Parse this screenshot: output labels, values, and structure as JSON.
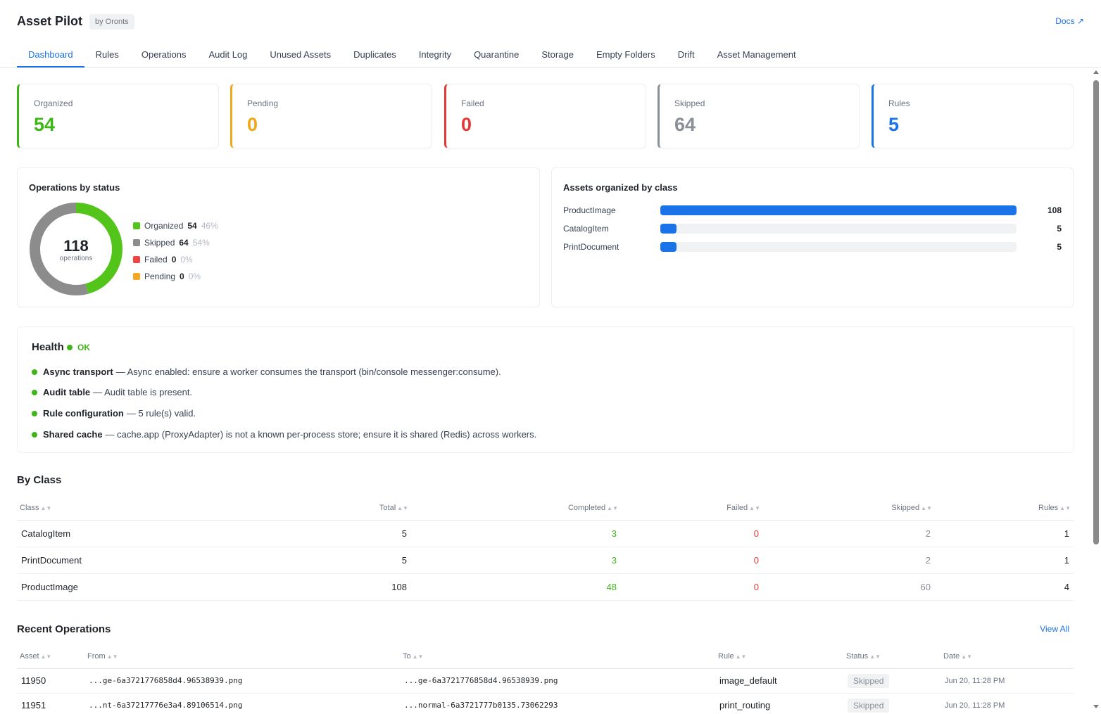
{
  "app": {
    "title": "Asset Pilot",
    "badge": "by Oronts",
    "docs_label": "Docs ↗"
  },
  "tabs": [
    "Dashboard",
    "Rules",
    "Operations",
    "Audit Log",
    "Unused Assets",
    "Duplicates",
    "Integrity",
    "Quarantine",
    "Storage",
    "Empty Folders",
    "Drift",
    "Asset Management"
  ],
  "active_tab": "Dashboard",
  "stats": [
    {
      "label": "Organized",
      "value": "54",
      "color": "#3fb618"
    },
    {
      "label": "Pending",
      "value": "0",
      "color": "#f0a818"
    },
    {
      "label": "Failed",
      "value": "0",
      "color": "#e53935"
    },
    {
      "label": "Skipped",
      "value": "64",
      "color": "#8a8f98"
    },
    {
      "label": "Rules",
      "value": "5",
      "color": "#1a73e8"
    }
  ],
  "ops_panel": {
    "title": "Operations by status",
    "total": "118",
    "total_label": "operations",
    "legend": [
      {
        "label": "Organized",
        "count": "54",
        "pct": "46%",
        "color": "#52c41a"
      },
      {
        "label": "Skipped",
        "count": "64",
        "pct": "54%",
        "color": "#8c8c8c"
      },
      {
        "label": "Failed",
        "count": "0",
        "pct": "0%",
        "color": "#ef4444"
      },
      {
        "label": "Pending",
        "count": "0",
        "pct": "0%",
        "color": "#f5a623"
      }
    ]
  },
  "class_panel": {
    "title": "Assets organized by class",
    "items": [
      {
        "name": "ProductImage",
        "value": "108",
        "fraction": 1.0
      },
      {
        "name": "CatalogItem",
        "value": "5",
        "fraction": 0.046
      },
      {
        "name": "PrintDocument",
        "value": "5",
        "fraction": 0.046
      }
    ]
  },
  "chart_data": [
    {
      "type": "pie",
      "title": "Operations by status",
      "categories": [
        "Organized",
        "Skipped",
        "Failed",
        "Pending"
      ],
      "values": [
        54,
        64,
        0,
        0
      ]
    },
    {
      "type": "bar",
      "title": "Assets organized by class",
      "categories": [
        "ProductImage",
        "CatalogItem",
        "PrintDocument"
      ],
      "values": [
        108,
        5,
        5
      ]
    }
  ],
  "health": {
    "title": "Health",
    "status": "OK",
    "checks": [
      {
        "name": "Async transport",
        "text": "— Async enabled: ensure a worker consumes the transport (bin/console messenger:consume)."
      },
      {
        "name": "Audit table",
        "text": "— Audit table is present."
      },
      {
        "name": "Rule configuration",
        "text": "— 5 rule(s) valid."
      },
      {
        "name": "Shared cache",
        "text": "— cache.app (ProxyAdapter) is not a known per-process store; ensure it is shared (Redis) across workers."
      }
    ]
  },
  "by_class": {
    "title": "By Class",
    "columns": [
      "Class",
      "Total",
      "Completed",
      "Failed",
      "Skipped",
      "Rules"
    ],
    "rows": [
      [
        "CatalogItem",
        "5",
        "3",
        "0",
        "2",
        "1"
      ],
      [
        "PrintDocument",
        "5",
        "3",
        "0",
        "2",
        "1"
      ],
      [
        "ProductImage",
        "108",
        "48",
        "0",
        "60",
        "4"
      ]
    ]
  },
  "recent": {
    "title": "Recent Operations",
    "view_all": "View All",
    "columns": [
      "Asset",
      "From",
      "To",
      "Rule",
      "Status",
      "Date"
    ],
    "rows": [
      [
        "11950",
        "...ge-6a3721776858d4.96538939.png",
        "...ge-6a3721776858d4.96538939.png",
        "image_default",
        "Skipped",
        "Jun 20, 11:28 PM"
      ],
      [
        "11951",
        "...nt-6a37217776e3a4.89106514.png",
        "...normal-6a3721777b0135.73062293",
        "print_routing",
        "Skipped",
        "Jun 20, 11:28 PM"
      ]
    ]
  }
}
